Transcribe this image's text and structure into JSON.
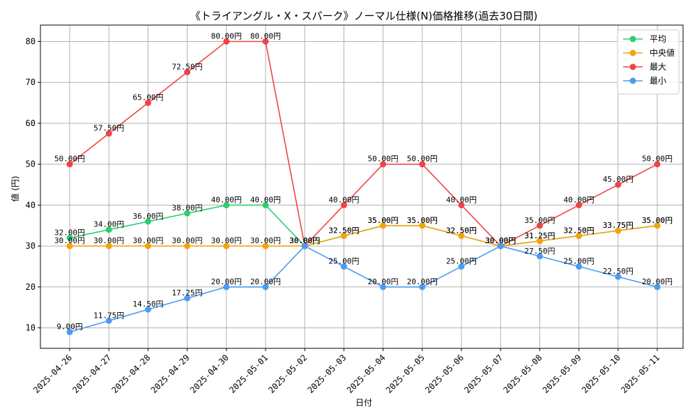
{
  "chart_data": {
    "type": "line",
    "title": "《トライアングル・X・スパーク》ノーマル仕様(N)価格推移(過去30日間)",
    "xlabel": "日付",
    "ylabel": "値 (円)",
    "ylim": [
      5,
      84
    ],
    "yticks": [
      10,
      20,
      30,
      40,
      50,
      60,
      70,
      80
    ],
    "grid": true,
    "legend_position": "top-right",
    "label_suffix": "円",
    "categories": [
      "2025-04-26",
      "2025-04-27",
      "2025-04-28",
      "2025-04-29",
      "2025-04-30",
      "2025-05-01",
      "2025-05-02",
      "2025-05-03",
      "2025-05-04",
      "2025-05-05",
      "2025-05-06",
      "2025-05-07",
      "2025-05-08",
      "2025-05-09",
      "2025-05-10",
      "2025-05-11"
    ],
    "series": [
      {
        "name": "平均",
        "color": "#2ecc71",
        "values": [
          32,
          34,
          36,
          38,
          40,
          40,
          30,
          32.5,
          35,
          35,
          32.5,
          30,
          31.25,
          32.5,
          33.75,
          35
        ]
      },
      {
        "name": "中央値",
        "color": "#f5a30a",
        "values": [
          30,
          30,
          30,
          30,
          30,
          30,
          30,
          32.5,
          35,
          35,
          32.5,
          30,
          31.25,
          32.5,
          33.75,
          35
        ]
      },
      {
        "name": "最大",
        "color": "#ef4444",
        "values": [
          50,
          57.5,
          65,
          72.5,
          80,
          80,
          30,
          40,
          50,
          50,
          40,
          30,
          35,
          40,
          45,
          50
        ]
      },
      {
        "name": "最小",
        "color": "#4b9bf5",
        "values": [
          9,
          11.75,
          14.5,
          17.25,
          20,
          20,
          30,
          25,
          20,
          20,
          25,
          30,
          27.5,
          25,
          22.5,
          20
        ]
      }
    ]
  }
}
